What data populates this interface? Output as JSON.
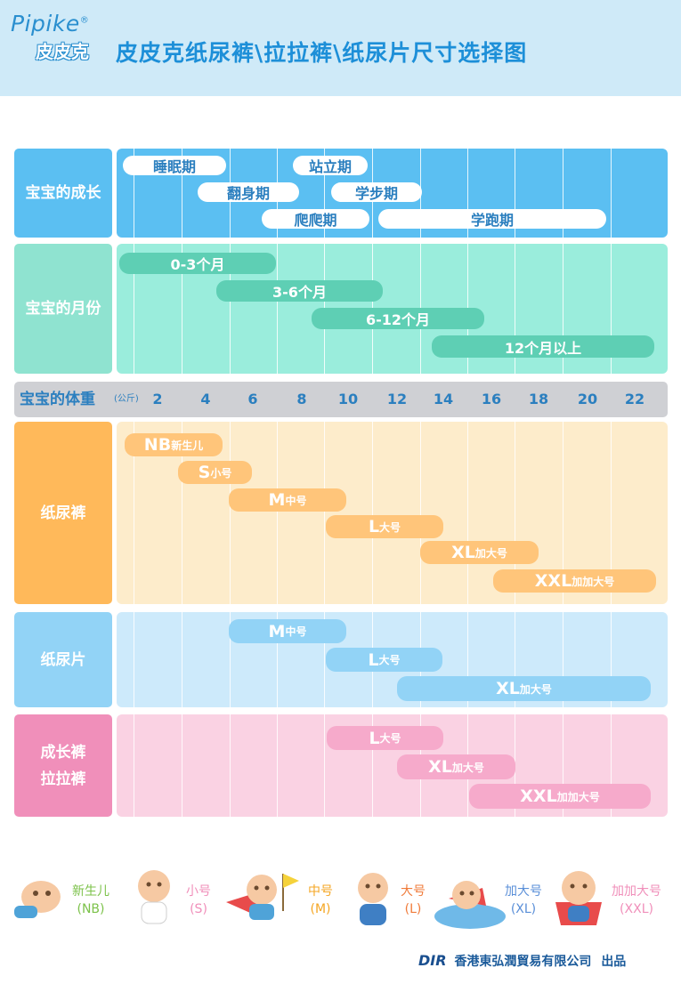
{
  "header": {
    "brand_en": "Pipike",
    "brand_reg": "®",
    "brand_cn": "皮皮克",
    "title": "皮皮克纸尿裤\\拉拉裤\\纸尿片尺寸选择图"
  },
  "rows": {
    "growth": "宝宝的成长",
    "month": "宝宝的月份",
    "weight": "宝宝的体重",
    "weight_unit": "(公斤)",
    "diaper": "纸尿裤",
    "pad": "纸尿片",
    "pants_line1": "成长裤",
    "pants_line2": "拉拉裤"
  },
  "growth_stages": [
    "睡眠期",
    "翻身期",
    "爬爬期",
    "站立期",
    "学步期",
    "学跑期"
  ],
  "months": [
    "0-3个月",
    "3-6个月",
    "6-12个月",
    "12个月以上"
  ],
  "weights": [
    "2",
    "4",
    "6",
    "8",
    "10",
    "12",
    "14",
    "16",
    "18",
    "20",
    "22"
  ],
  "diaper_sizes": [
    {
      "code": "NB",
      "name": "新生儿"
    },
    {
      "code": "S",
      "name": "小号"
    },
    {
      "code": "M",
      "name": "中号"
    },
    {
      "code": "L",
      "name": "大号"
    },
    {
      "code": "XL",
      "name": "加大号"
    },
    {
      "code": "XXL",
      "name": "加加大号"
    }
  ],
  "pad_sizes": [
    {
      "code": "M",
      "name": "中号"
    },
    {
      "code": "L",
      "name": "大号"
    },
    {
      "code": "XL",
      "name": "加大号"
    }
  ],
  "pants_sizes": [
    {
      "code": "L",
      "name": "大号"
    },
    {
      "code": "XL",
      "name": "加大号"
    },
    {
      "code": "XXL",
      "name": "加加大号"
    }
  ],
  "footer_sizes": [
    {
      "name": "新生儿",
      "code": "(NB)"
    },
    {
      "name": "小号",
      "code": "(S)"
    },
    {
      "name": "中号",
      "code": "(M)"
    },
    {
      "name": "大号",
      "code": "(L)"
    },
    {
      "name": "加大号",
      "code": "(XL)"
    },
    {
      "name": "加加大号",
      "code": "(XXL)"
    }
  ],
  "footer_credit": {
    "logo": "DIR",
    "company": "香港東弘潤貿易有限公司",
    "suffix": "出品"
  },
  "colors": {
    "growth": "#5bbff2",
    "month": "#8fe3d0",
    "diaper": "#ffb95a",
    "pad": "#92d3f6",
    "pants": "#f08fba",
    "title": "#1d8fd8"
  }
}
